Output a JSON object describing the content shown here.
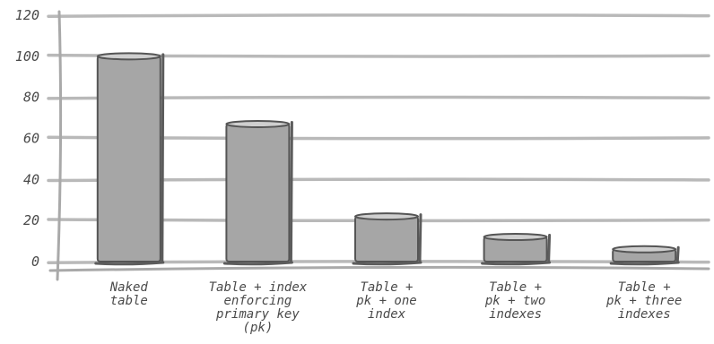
{
  "chart_data": {
    "type": "bar",
    "categories": [
      [
        "Naked",
        "table"
      ],
      [
        "Table + index",
        "enforcing",
        "primary key",
        "(pk)"
      ],
      [
        "Table +",
        "pk + one",
        "index"
      ],
      [
        "Table +",
        "pk + two",
        "indexes"
      ],
      [
        "Table +",
        "pk + three",
        "indexes"
      ]
    ],
    "values": [
      100,
      67,
      22,
      12,
      6
    ],
    "yticks": [
      "0",
      "20",
      "40",
      "60",
      "80",
      "100",
      "120"
    ],
    "ylim": [
      0,
      120
    ],
    "grid": true,
    "title": "",
    "xlabel": "",
    "ylabel": "",
    "colors": {
      "bar": "#a6a6a6",
      "bar_top": "#cfcfcf",
      "grid": "#b9b9b9",
      "outline": "#555555",
      "text": "#4a4a4a"
    }
  }
}
